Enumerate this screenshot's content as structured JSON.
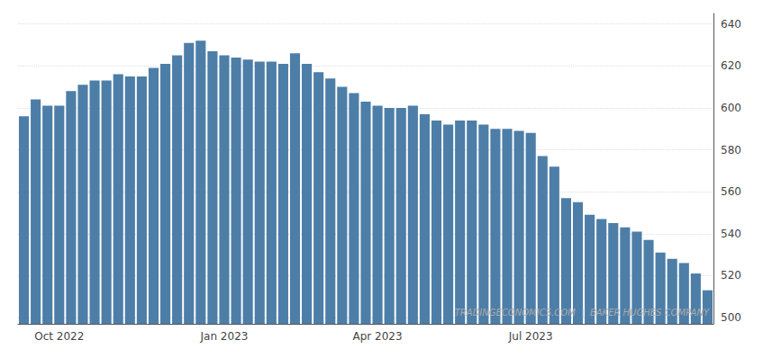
{
  "chart_data": {
    "type": "bar",
    "categories": [
      null,
      null,
      null,
      "Oct 2022",
      null,
      null,
      null,
      null,
      null,
      null,
      null,
      null,
      null,
      null,
      null,
      null,
      null,
      "Jan 2023",
      null,
      null,
      null,
      null,
      null,
      null,
      null,
      null,
      null,
      null,
      null,
      null,
      "Apr 2023",
      null,
      null,
      null,
      null,
      null,
      null,
      null,
      null,
      null,
      null,
      null,
      null,
      "Jul 2023",
      null,
      null,
      null,
      null,
      null,
      null,
      null,
      null,
      null,
      null,
      null,
      null,
      null,
      null,
      null
    ],
    "values": [
      596,
      604,
      601,
      601,
      608,
      611,
      613,
      613,
      616,
      615,
      615,
      619,
      621,
      625,
      631,
      632,
      627,
      625,
      624,
      623,
      622,
      622,
      621,
      626,
      621,
      617,
      614,
      610,
      607,
      603,
      601,
      600,
      600,
      601,
      597,
      594,
      592,
      594,
      594,
      592,
      590,
      590,
      589,
      588,
      577,
      572,
      557,
      555,
      549,
      547,
      545,
      543,
      541,
      537,
      531,
      528,
      526,
      521,
      513
    ],
    "color": "#4d7ea8",
    "ylim": [
      497,
      645
    ],
    "yticks": [
      500,
      520,
      540,
      560,
      580,
      600,
      620,
      640
    ],
    "grid": true,
    "annotations": [
      "TRADINGECONOMICS.COM  |  BAKER HUGHES COMPANY"
    ]
  }
}
